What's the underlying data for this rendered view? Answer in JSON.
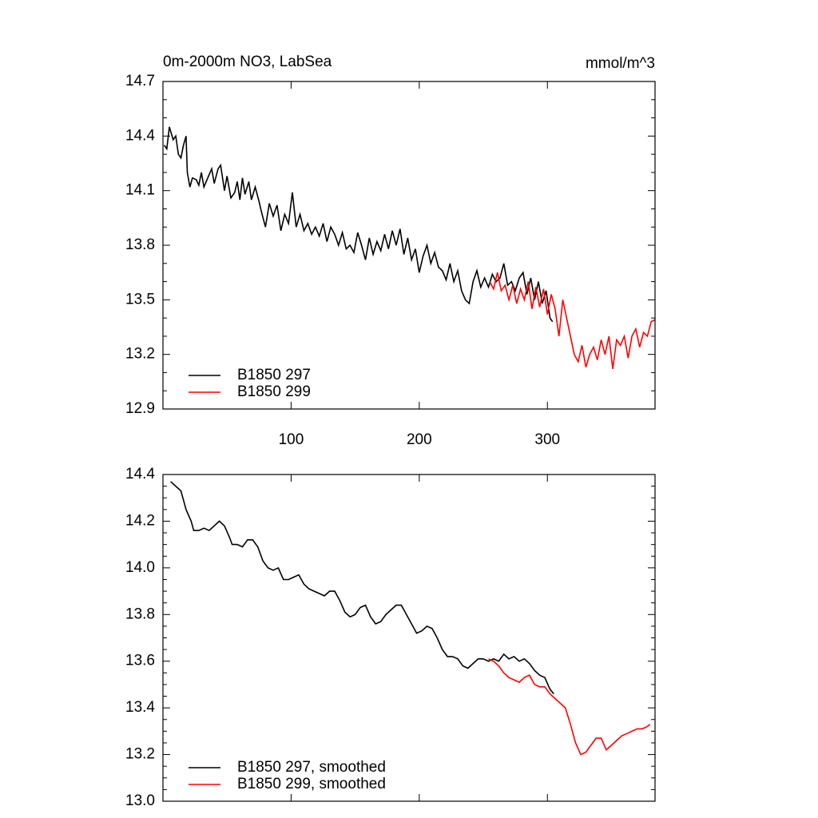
{
  "chart_data": [
    {
      "type": "line",
      "title": "0m-2000m NO3, LabSea",
      "units": "mmol/m^3",
      "xlim": [
        0,
        384
      ],
      "xticks": [
        100,
        200,
        300
      ],
      "xtick_labels": true,
      "ylim": [
        12.9,
        14.7
      ],
      "yticks": [
        12.9,
        13.2,
        13.5,
        13.8,
        14.1,
        14.4,
        14.7
      ],
      "legend": "lower left",
      "series": [
        {
          "name": "B1850 297",
          "color": "#000000",
          "x": [
            1,
            3,
            5,
            8,
            10,
            12,
            14,
            16,
            18,
            19,
            21,
            23,
            26,
            28,
            30,
            32,
            35,
            38,
            40,
            43,
            45,
            48,
            50,
            53,
            56,
            58,
            60,
            62,
            64,
            67,
            69,
            72,
            75,
            77,
            80,
            83,
            86,
            89,
            92,
            95,
            98,
            101,
            104,
            107,
            110,
            113,
            116,
            119,
            122,
            125,
            128,
            131,
            134,
            137,
            140,
            143,
            146,
            149,
            152,
            155,
            158,
            161,
            164,
            167,
            170,
            173,
            176,
            179,
            182,
            185,
            188,
            191,
            194,
            197,
            200,
            203,
            206,
            209,
            212,
            215,
            218,
            221,
            224,
            227,
            230,
            233,
            236,
            239,
            242,
            245,
            248,
            251,
            254,
            257,
            260,
            263,
            266,
            269,
            272,
            275,
            278,
            281,
            284,
            287,
            290,
            293,
            296,
            299,
            302,
            304
          ],
          "values": [
            14.35,
            14.33,
            14.45,
            14.38,
            14.4,
            14.3,
            14.28,
            14.35,
            14.4,
            14.2,
            14.12,
            14.17,
            14.16,
            14.13,
            14.2,
            14.12,
            14.17,
            14.22,
            14.14,
            14.22,
            14.24,
            14.1,
            14.18,
            14.06,
            14.09,
            14.15,
            14.05,
            14.17,
            14.08,
            14.15,
            14.05,
            14.12,
            14.04,
            13.98,
            13.9,
            14.03,
            13.96,
            14.02,
            13.88,
            13.97,
            13.92,
            14.09,
            13.9,
            13.97,
            13.88,
            13.92,
            13.86,
            13.9,
            13.85,
            13.92,
            13.82,
            13.9,
            13.86,
            13.8,
            13.87,
            13.78,
            13.8,
            13.76,
            13.87,
            13.8,
            13.72,
            13.84,
            13.75,
            13.82,
            13.77,
            13.86,
            13.78,
            13.88,
            13.8,
            13.89,
            13.75,
            13.84,
            13.72,
            13.78,
            13.65,
            13.74,
            13.8,
            13.7,
            13.76,
            13.68,
            13.66,
            13.61,
            13.7,
            13.6,
            13.66,
            13.55,
            13.5,
            13.48,
            13.6,
            13.66,
            13.57,
            13.62,
            13.57,
            13.64,
            13.6,
            13.62,
            13.7,
            13.58,
            13.6,
            13.55,
            13.62,
            13.65,
            13.53,
            13.62,
            13.5,
            13.6,
            13.48,
            13.55,
            13.4,
            13.38
          ]
        },
        {
          "name": "B1850 299",
          "color": "#ff0000",
          "x": [
            255,
            258,
            261,
            264,
            267,
            270,
            273,
            276,
            279,
            282,
            285,
            288,
            291,
            294,
            297,
            300,
            303,
            306,
            309,
            312,
            315,
            318,
            321,
            324,
            327,
            330,
            333,
            336,
            339,
            342,
            345,
            348,
            351,
            354,
            357,
            360,
            363,
            366,
            369,
            372,
            375,
            378,
            381,
            384
          ],
          "values": [
            13.6,
            13.56,
            13.65,
            13.55,
            13.58,
            13.5,
            13.58,
            13.48,
            13.56,
            13.5,
            13.6,
            13.45,
            13.57,
            13.46,
            13.56,
            13.42,
            13.53,
            13.45,
            13.3,
            13.5,
            13.4,
            13.3,
            13.2,
            13.16,
            13.25,
            13.13,
            13.2,
            13.24,
            13.17,
            13.28,
            13.2,
            13.3,
            13.12,
            13.28,
            13.25,
            13.3,
            13.18,
            13.3,
            13.34,
            13.24,
            13.32,
            13.3,
            13.38,
            13.39
          ]
        }
      ]
    },
    {
      "type": "line",
      "xlim": [
        0,
        384
      ],
      "xticks": [
        100,
        200,
        300
      ],
      "xtick_labels": false,
      "ylim": [
        13.0,
        14.4
      ],
      "yticks": [
        {
          "value": 13.0,
          "label": "13.0"
        },
        13.2,
        13.4,
        13.6,
        13.8,
        {
          "value": 14.0,
          "label": "14.0"
        },
        14.2,
        14.4
      ],
      "legend": "lower left",
      "series": [
        {
          "name": "B1850 297, smoothed",
          "color": "#000000",
          "x": [
            6,
            10,
            14,
            18,
            22,
            24,
            28,
            32,
            36,
            40,
            44,
            48,
            52,
            54,
            58,
            62,
            66,
            70,
            74,
            78,
            82,
            86,
            90,
            94,
            98,
            102,
            106,
            110,
            114,
            118,
            122,
            126,
            130,
            134,
            138,
            142,
            146,
            150,
            154,
            158,
            162,
            166,
            170,
            174,
            178,
            182,
            186,
            190,
            194,
            198,
            202,
            206,
            210,
            214,
            218,
            222,
            226,
            230,
            234,
            238,
            242,
            246,
            250,
            254,
            258,
            262,
            266,
            270,
            274,
            278,
            282,
            286,
            290,
            294,
            298,
            302,
            305
          ],
          "values": [
            14.37,
            14.35,
            14.33,
            14.25,
            14.2,
            14.16,
            14.16,
            14.17,
            14.16,
            14.18,
            14.2,
            14.18,
            14.13,
            14.1,
            14.1,
            14.09,
            14.12,
            14.12,
            14.09,
            14.03,
            14.0,
            13.99,
            14.0,
            13.95,
            13.95,
            13.96,
            13.97,
            13.93,
            13.91,
            13.9,
            13.89,
            13.88,
            13.9,
            13.9,
            13.86,
            13.81,
            13.79,
            13.8,
            13.83,
            13.84,
            13.79,
            13.76,
            13.77,
            13.8,
            13.82,
            13.84,
            13.84,
            13.8,
            13.76,
            13.72,
            13.73,
            13.75,
            13.74,
            13.7,
            13.65,
            13.62,
            13.62,
            13.61,
            13.58,
            13.57,
            13.59,
            13.61,
            13.61,
            13.6,
            13.61,
            13.6,
            13.63,
            13.61,
            13.62,
            13.6,
            13.61,
            13.59,
            13.56,
            13.54,
            13.53,
            13.48,
            13.46
          ]
        },
        {
          "name": "B1850 299, smoothed",
          "color": "#ff0000",
          "x": [
            254,
            258,
            262,
            266,
            270,
            274,
            278,
            282,
            286,
            290,
            294,
            298,
            302,
            306,
            310,
            314,
            318,
            322,
            326,
            330,
            334,
            338,
            342,
            346,
            350,
            354,
            358,
            362,
            366,
            370,
            374,
            378,
            380
          ],
          "values": [
            13.61,
            13.6,
            13.58,
            13.55,
            13.53,
            13.52,
            13.51,
            13.53,
            13.54,
            13.5,
            13.49,
            13.49,
            13.46,
            13.44,
            13.42,
            13.4,
            13.33,
            13.25,
            13.2,
            13.21,
            13.24,
            13.27,
            13.27,
            13.22,
            13.24,
            13.26,
            13.28,
            13.29,
            13.3,
            13.31,
            13.31,
            13.32,
            13.33
          ]
        }
      ]
    }
  ]
}
